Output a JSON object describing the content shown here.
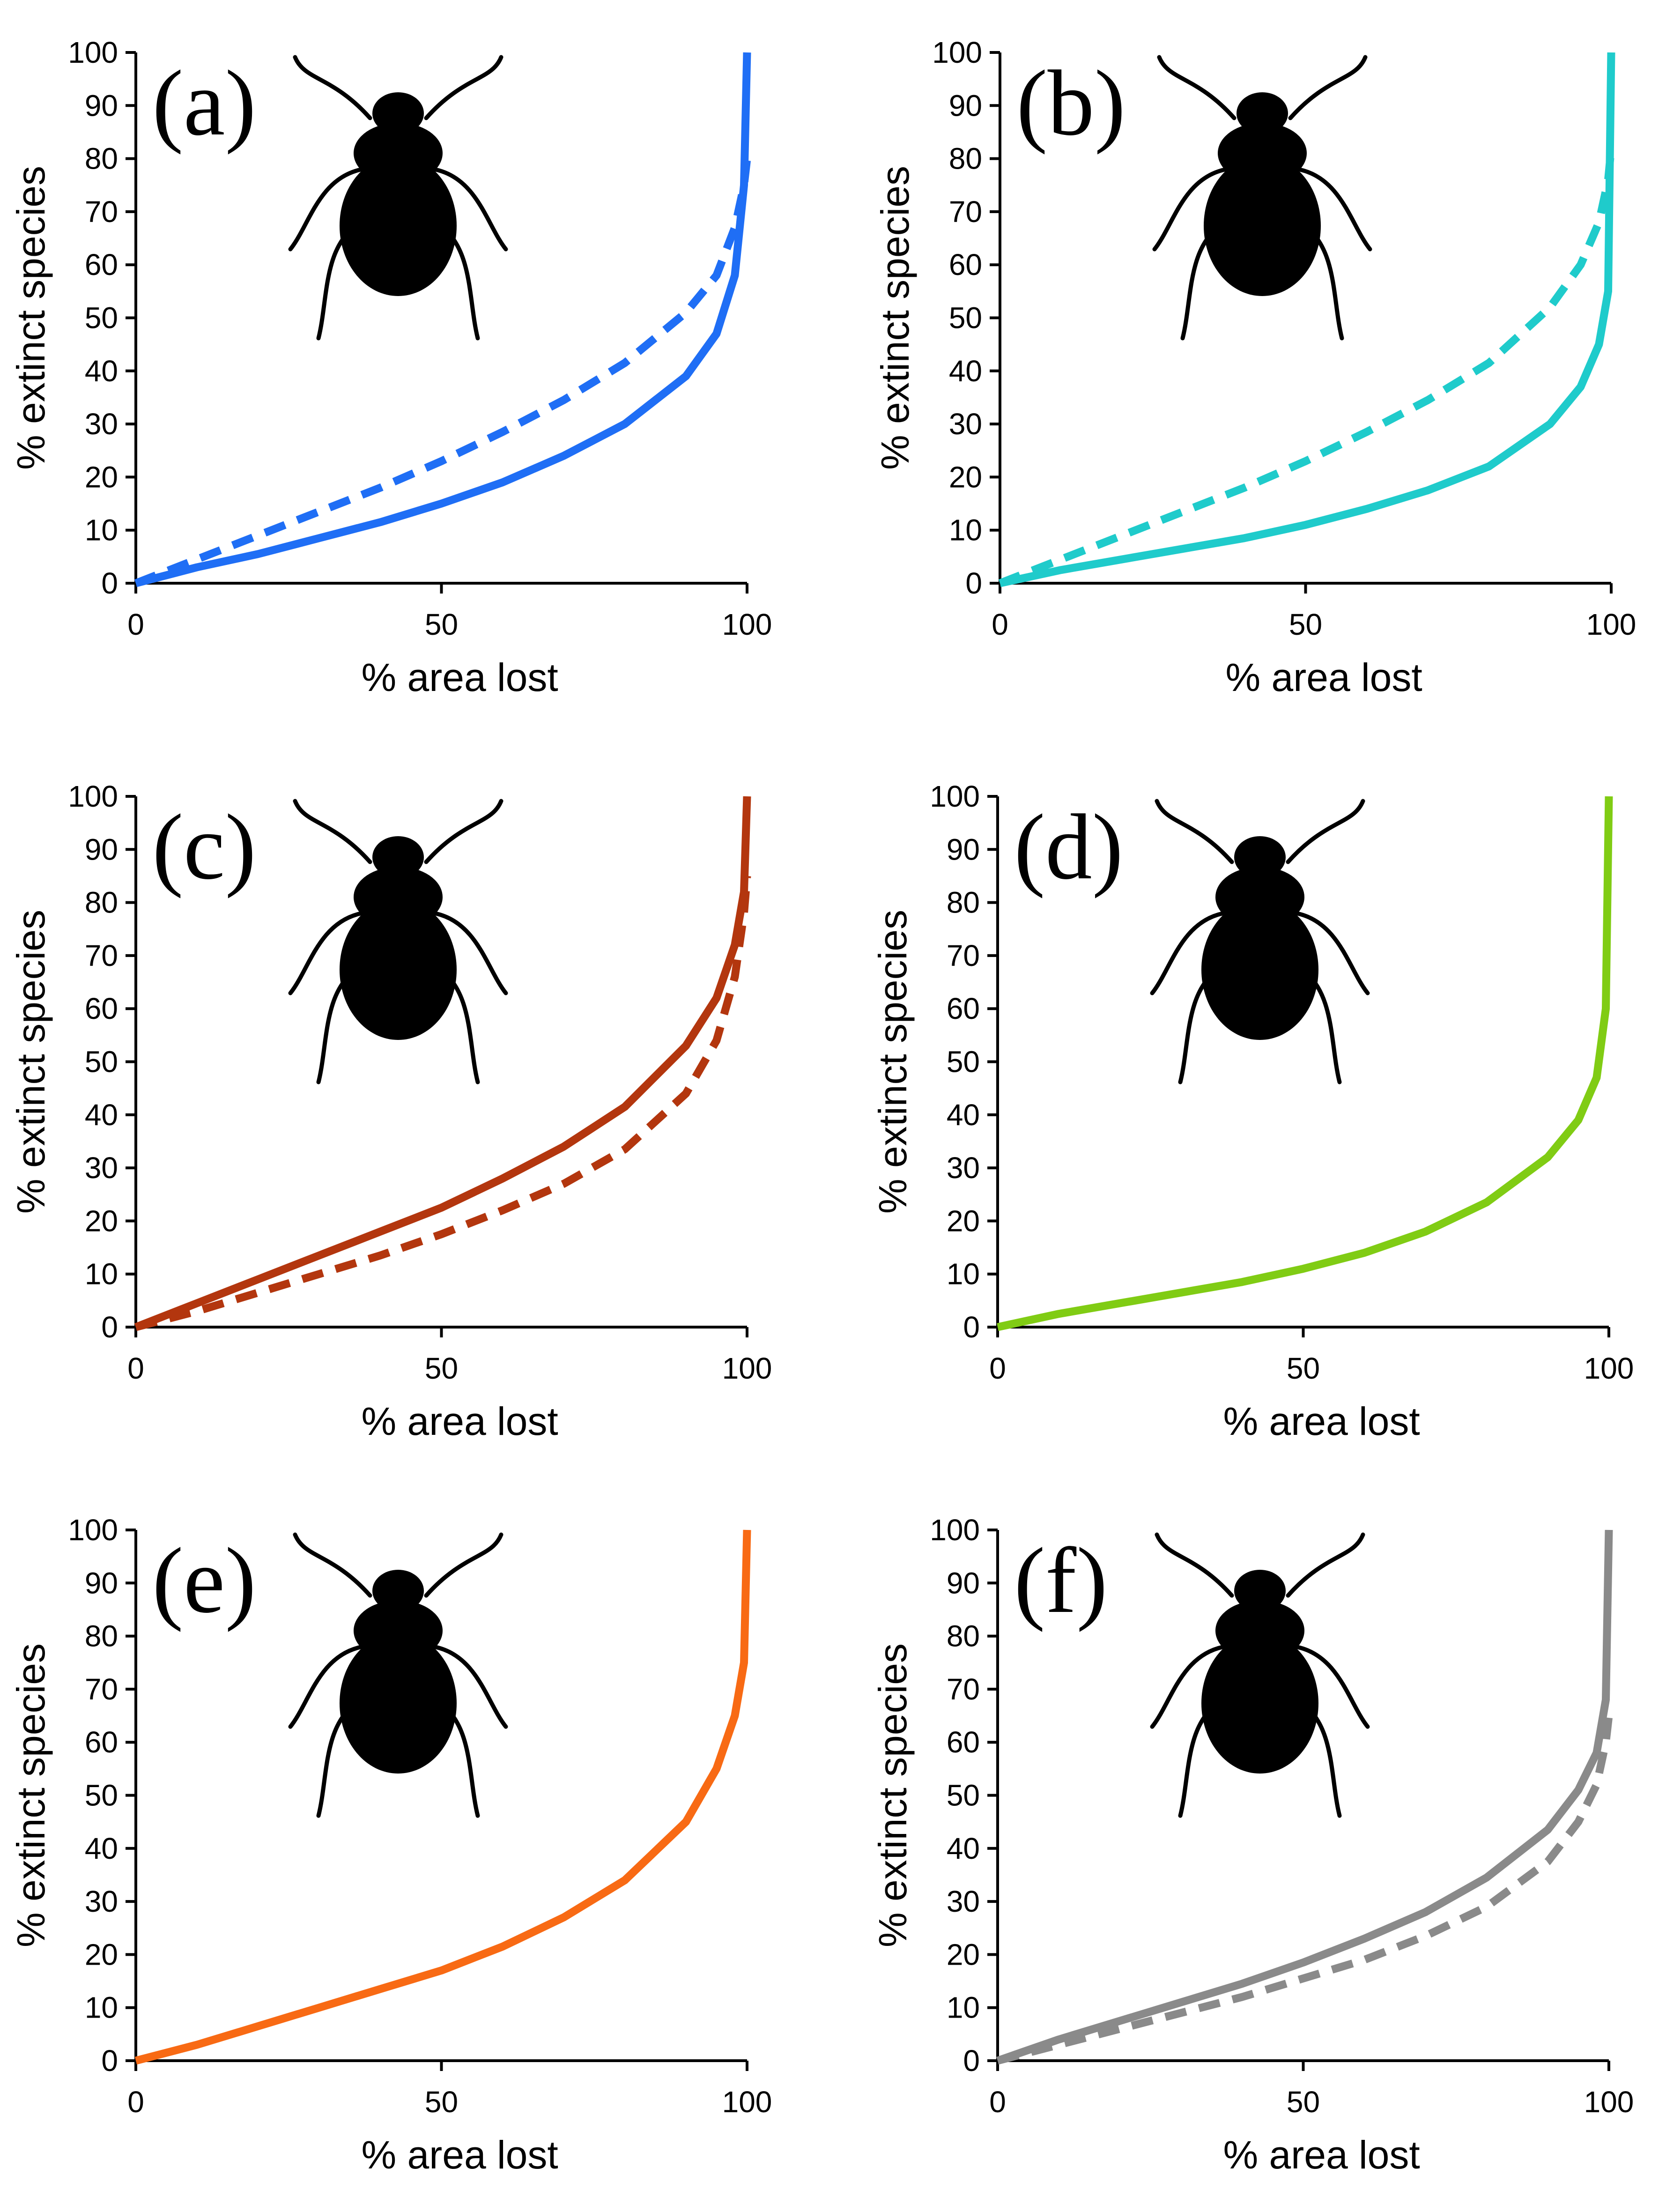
{
  "figure": {
    "description_free": true
  },
  "chart_data": [
    {
      "panel": "(a)",
      "type": "line",
      "xlabel": "% area lost",
      "ylabel": "% extinct species",
      "xlim": [
        0,
        100
      ],
      "ylim": [
        0,
        100
      ],
      "xticks": [
        "0",
        "50",
        "100"
      ],
      "yticks": [
        "0",
        "10",
        "20",
        "30",
        "40",
        "50",
        "60",
        "70",
        "80",
        "90",
        "100"
      ],
      "color": "#1f6ef5",
      "icon": "ground-beetle",
      "series": [
        {
          "name": "solid",
          "style": "solid",
          "x": [
            0,
            10,
            20,
            30,
            40,
            50,
            60,
            70,
            80,
            90,
            95,
            98,
            99.5,
            100
          ],
          "y": [
            0,
            3,
            5.5,
            8.5,
            11.5,
            15,
            19,
            24,
            30,
            39,
            47,
            58,
            75,
            100
          ]
        },
        {
          "name": "dashed",
          "style": "dashed",
          "x": [
            0,
            10,
            20,
            30,
            40,
            50,
            60,
            70,
            80,
            90,
            95,
            98,
            99.5,
            100
          ],
          "y": [
            0,
            4.5,
            9,
            13.5,
            18,
            23,
            28.5,
            34.5,
            41.5,
            51,
            58,
            67,
            75,
            80
          ]
        }
      ]
    },
    {
      "panel": "(b)",
      "type": "line",
      "xlabel": "% area lost",
      "ylabel": "% extinct species",
      "xlim": [
        0,
        100
      ],
      "ylim": [
        0,
        100
      ],
      "xticks": [
        "0",
        "50",
        "100"
      ],
      "yticks": [
        "0",
        "10",
        "20",
        "30",
        "40",
        "50",
        "60",
        "70",
        "80",
        "90",
        "100"
      ],
      "color": "#1fcbcb",
      "icon": "water-beetle",
      "series": [
        {
          "name": "solid",
          "style": "solid",
          "x": [
            0,
            10,
            20,
            30,
            40,
            50,
            60,
            70,
            80,
            90,
            95,
            98,
            99.5,
            100
          ],
          "y": [
            0,
            2.5,
            4.5,
            6.5,
            8.5,
            11,
            14,
            17.5,
            22,
            30,
            37,
            45,
            55,
            100
          ]
        },
        {
          "name": "dashed",
          "style": "dashed",
          "x": [
            0,
            10,
            20,
            30,
            40,
            50,
            60,
            70,
            80,
            90,
            95,
            98,
            99.5,
            100
          ],
          "y": [
            0,
            4.5,
            9,
            13.5,
            18,
            23,
            28.5,
            34.5,
            41.5,
            52,
            60,
            68,
            76,
            82
          ]
        }
      ]
    },
    {
      "panel": "(c)",
      "type": "line",
      "xlabel": "% area lost",
      "ylabel": "% extinct species",
      "xlim": [
        0,
        100
      ],
      "ylim": [
        0,
        100
      ],
      "xticks": [
        "0",
        "50",
        "100"
      ],
      "yticks": [
        "0",
        "10",
        "20",
        "30",
        "40",
        "50",
        "60",
        "70",
        "80",
        "90",
        "100"
      ],
      "color": "#b3360e",
      "icon": "dung-beetle",
      "series": [
        {
          "name": "solid",
          "style": "solid",
          "x": [
            0,
            10,
            20,
            30,
            40,
            50,
            60,
            70,
            80,
            90,
            95,
            98,
            99.5,
            100
          ],
          "y": [
            0,
            4.5,
            9,
            13.5,
            18,
            22.5,
            28,
            34,
            41.5,
            53,
            62,
            72,
            82,
            100
          ]
        },
        {
          "name": "dashed",
          "style": "dashed",
          "x": [
            0,
            10,
            20,
            30,
            40,
            50,
            60,
            70,
            80,
            90,
            95,
            98,
            99.5,
            100
          ],
          "y": [
            0,
            3,
            6.5,
            10,
            13.5,
            17.5,
            22,
            27,
            33.5,
            44,
            54,
            66,
            78,
            85
          ]
        }
      ]
    },
    {
      "panel": "(d)",
      "type": "line",
      "xlabel": "% area lost",
      "ylabel": "% extinct species",
      "xlim": [
        0,
        100
      ],
      "ylim": [
        0,
        100
      ],
      "xticks": [
        "0",
        "50",
        "100"
      ],
      "yticks": [
        "0",
        "10",
        "20",
        "30",
        "40",
        "50",
        "60",
        "70",
        "80",
        "90",
        "100"
      ],
      "color": "#80cc14",
      "icon": "click-beetle",
      "series": [
        {
          "name": "solid",
          "style": "solid",
          "x": [
            0,
            10,
            20,
            30,
            40,
            50,
            60,
            70,
            80,
            90,
            95,
            98,
            99.5,
            100
          ],
          "y": [
            0,
            2.5,
            4.5,
            6.5,
            8.5,
            11,
            14,
            18,
            23.5,
            32,
            39,
            47,
            60,
            100
          ]
        }
      ]
    },
    {
      "panel": "(e)",
      "type": "line",
      "xlabel": "% area lost",
      "ylabel": "% extinct species",
      "xlim": [
        0,
        100
      ],
      "ylim": [
        0,
        100
      ],
      "xticks": [
        "0",
        "50",
        "100"
      ],
      "yticks": [
        "0",
        "10",
        "20",
        "30",
        "40",
        "50",
        "60",
        "70",
        "80",
        "90",
        "100"
      ],
      "color": "#f86a14",
      "icon": "scarab-beetle",
      "series": [
        {
          "name": "solid",
          "style": "solid",
          "x": [
            0,
            10,
            20,
            30,
            40,
            50,
            60,
            70,
            80,
            90,
            95,
            98,
            99.5,
            100
          ],
          "y": [
            0,
            3,
            6.5,
            10,
            13.5,
            17,
            21.5,
            27,
            34,
            45,
            55,
            65,
            75,
            100
          ]
        }
      ]
    },
    {
      "panel": "(f)",
      "type": "line",
      "xlabel": "% area lost",
      "ylabel": "% extinct species",
      "xlim": [
        0,
        100
      ],
      "ylim": [
        0,
        100
      ],
      "xticks": [
        "0",
        "50",
        "100"
      ],
      "yticks": [
        "0",
        "10",
        "20",
        "30",
        "40",
        "50",
        "60",
        "70",
        "80",
        "90",
        "100"
      ],
      "color": "#8a8a8a",
      "icon": "long-legged-beetle",
      "series": [
        {
          "name": "solid",
          "style": "solid",
          "x": [
            0,
            10,
            20,
            30,
            40,
            50,
            60,
            70,
            80,
            90,
            95,
            98,
            99.5,
            100
          ],
          "y": [
            0,
            4,
            7.5,
            11,
            14.5,
            18.5,
            23,
            28,
            34.5,
            43.5,
            51,
            58,
            68,
            100
          ]
        },
        {
          "name": "dashed",
          "style": "dashed",
          "x": [
            0,
            10,
            20,
            30,
            40,
            50,
            60,
            70,
            80,
            90,
            95,
            98,
            99.5,
            100
          ],
          "y": [
            0,
            3,
            6,
            9,
            12,
            15.5,
            19,
            23.5,
            29,
            37.5,
            45,
            52,
            60,
            65
          ]
        }
      ]
    }
  ]
}
